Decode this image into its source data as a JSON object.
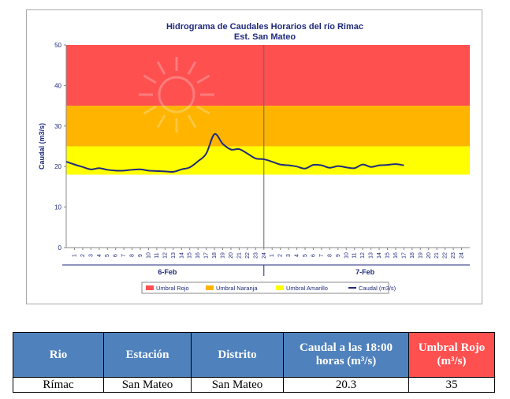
{
  "chart_data": {
    "type": "line",
    "title": "Hidrograma de Caudales Horarios del río Rimac",
    "subtitle": "Est. San Mateo",
    "ylabel": "Caudal  (m3/s)",
    "xlabel": "",
    "ylim": [
      0,
      50
    ],
    "yticks": [
      "0",
      "10",
      "20",
      "30",
      "40",
      "50"
    ],
    "day_tick_labels": [
      "1",
      "2",
      "3",
      "4",
      "5",
      "6",
      "7",
      "8",
      "9",
      "10",
      "11",
      "12",
      "13",
      "14",
      "15",
      "16",
      "17",
      "18",
      "19",
      "20",
      "21",
      "22",
      "23",
      "24"
    ],
    "days": [
      "6-Feb",
      "7-Feb"
    ],
    "bands": [
      {
        "name": "Umbral Rojo",
        "from": 35,
        "to": 50,
        "color": "#ff5050"
      },
      {
        "name": "Umbral Naranja",
        "from": 25,
        "to": 35,
        "color": "#ffb400"
      },
      {
        "name": "Umbral Amarillo",
        "from": 18,
        "to": 25,
        "color": "#ffff00"
      }
    ],
    "series": [
      {
        "name": "Caudal (m3/s)",
        "color": "#1f2a7c",
        "x": [
          1,
          2,
          3,
          4,
          5,
          6,
          7,
          8,
          9,
          10,
          11,
          12,
          13,
          14,
          15,
          16,
          17,
          18,
          19,
          20,
          21,
          22,
          23,
          24,
          25,
          26,
          27,
          28,
          29,
          30,
          31,
          32,
          33,
          34,
          35,
          36,
          37,
          38,
          39,
          40,
          41,
          42
        ],
        "values": [
          21.2,
          20.5,
          19.9,
          19.3,
          19.6,
          19.2,
          19.0,
          19.0,
          19.2,
          19.3,
          19.0,
          18.9,
          18.8,
          18.7,
          19.3,
          19.8,
          21.3,
          23.2,
          28.0,
          25.6,
          24.2,
          24.3,
          23.2,
          22.0,
          21.8,
          21.2,
          20.5,
          20.3,
          20.0,
          19.5,
          20.4,
          20.3,
          19.7,
          20.1,
          19.8,
          19.6,
          20.5,
          19.9,
          20.3,
          20.4,
          20.6,
          20.3
        ]
      }
    ],
    "legend": {
      "placement": "bottom",
      "entries": [
        "Umbral Rojo",
        "Umbral Naranja",
        "Umbral Amarillo",
        "Caudal (m3/s)"
      ]
    }
  },
  "table": {
    "headers": [
      "Rio",
      "Estación",
      "Distrito",
      "Caudal a las 18:00 horas (m³/s)",
      "Umbral Rojo (m³/s)"
    ],
    "row": [
      "Rímac",
      "San Mateo",
      "San Mateo",
      "20.3",
      "35"
    ]
  }
}
